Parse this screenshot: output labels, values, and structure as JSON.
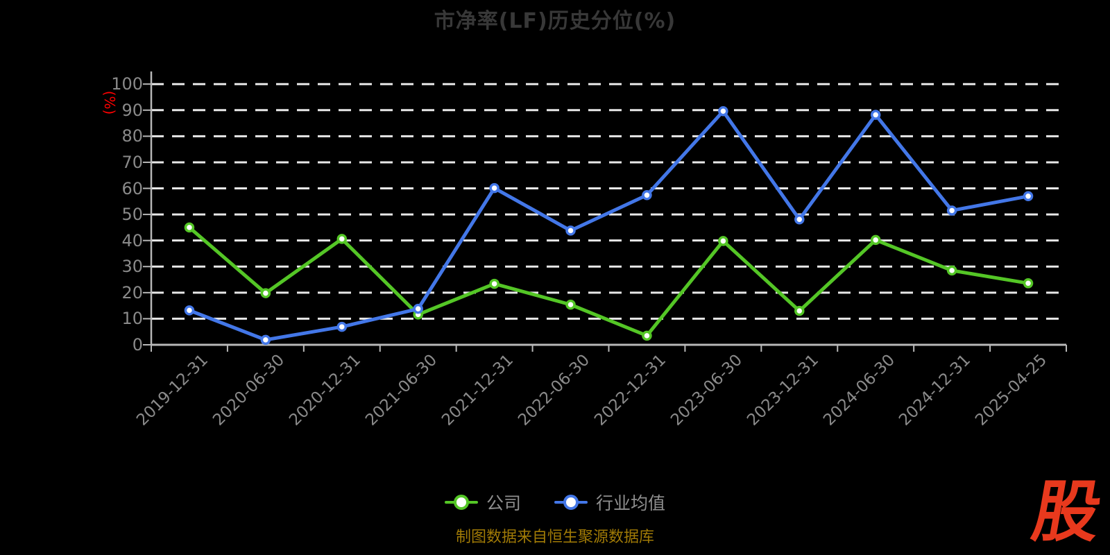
{
  "chart_data": {
    "type": "line",
    "title": "市净率(LF)历史分位(%)",
    "unit_label": "(%)",
    "source_note": "制图数据来自恒生聚源数据库",
    "logo_text": "股",
    "categories": [
      "2019-12-31",
      "2020-06-30",
      "2020-12-31",
      "2021-06-30",
      "2021-12-31",
      "2022-06-30",
      "2022-12-31",
      "2023-06-30",
      "2023-12-31",
      "2024-06-30",
      "2024-12-31",
      "2025-04-25"
    ],
    "series": [
      {
        "name": "公司",
        "color": "#54c626",
        "values": [
          45.0,
          19.8,
          40.6,
          11.6,
          23.4,
          15.4,
          3.5,
          39.8,
          13.0,
          40.2,
          28.5,
          23.6
        ]
      },
      {
        "name": "行业均值",
        "color": "#4377e8",
        "values": [
          13.2,
          1.9,
          6.9,
          13.8,
          60.1,
          43.8,
          57.4,
          89.6,
          48.1,
          88.2,
          51.5,
          57.0
        ]
      }
    ],
    "ylim": [
      0,
      100
    ],
    "yticks": [
      0,
      10,
      20,
      30,
      40,
      50,
      60,
      70,
      80,
      90,
      100
    ],
    "grid": "horizontal-dashed",
    "legend_position": "bottom-center",
    "colors": {
      "background": "#000000",
      "title_text": "#383838",
      "axis_line": "#b8b8b8",
      "grid_line": "#e8e8e8",
      "tick_label": "#8a8a8a",
      "legend_text": "#8f8f8f",
      "unit_label": "#ff0000",
      "source_text": "#a07a06",
      "logo": "#e8391d"
    }
  }
}
